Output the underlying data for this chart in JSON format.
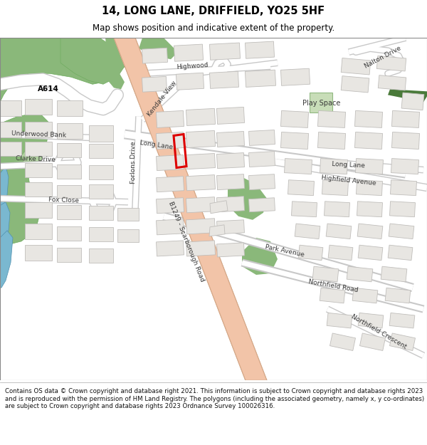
{
  "title": "14, LONG LANE, DRIFFIELD, YO25 5HF",
  "subtitle": "Map shows position and indicative extent of the property.",
  "footer": "Contains OS data © Crown copyright and database right 2021. This information is subject to Crown copyright and database rights 2023 and is reproduced with the permission of HM Land Registry. The polygons (including the associated geometry, namely x, y co-ordinates) are subject to Crown copyright and database rights 2023 Ordnance Survey 100026316.",
  "bg_color": "#ffffff",
  "road_main_color": "#f2c4a8",
  "road_main_outline": "#d4a888",
  "road_minor_outline": "#c8c8c8",
  "green_dark": "#6aaa5a",
  "green_mid": "#8ab87a",
  "green_light": "#c0d8b0",
  "green_play": "#c8ddb8",
  "building_fill": "#e8e6e2",
  "building_outline": "#c0bebb",
  "highlight_color": "#dd0000",
  "water_color": "#7ab8d0",
  "water_outline": "#5090b0",
  "text_color": "#383838",
  "title_color": "#000000"
}
